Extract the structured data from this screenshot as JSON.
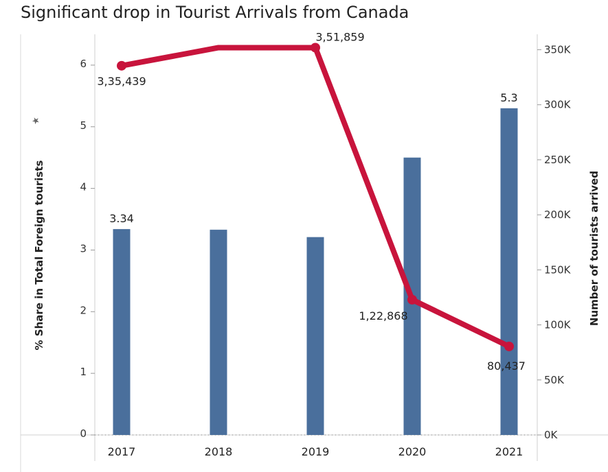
{
  "chart_data": {
    "type": "bar+line",
    "title": "Significant drop in Tourist Arrivals from Canada",
    "categories": [
      "2017",
      "2018",
      "2019",
      "2020",
      "2021"
    ],
    "series": [
      {
        "name": "% Share in Total Foreign tourists",
        "type": "bar",
        "axis": "left",
        "color": "#4a6f9c",
        "values": [
          3.34,
          3.33,
          3.21,
          4.5,
          5.3
        ],
        "labels": [
          "3.34",
          "",
          "",
          "",
          "5.3"
        ]
      },
      {
        "name": "Number of tourists arrived",
        "type": "line",
        "axis": "right",
        "color": "#c8143c",
        "values": [
          335439,
          351859,
          351859,
          122868,
          80437
        ],
        "labels": [
          "3,35,439",
          "",
          "3,51,859",
          "1,22,868",
          "80,437"
        ],
        "markers": [
          true,
          false,
          true,
          true,
          true
        ]
      }
    ],
    "ylabel_left": "% Share in Total Foreign tourists",
    "ylabel_right": "Number of tourists arrived",
    "ylim_left": [
      0,
      6.5
    ],
    "ylim_right": [
      0,
      364000
    ],
    "yticks_left": [
      0,
      1,
      2,
      3,
      4,
      5,
      6
    ],
    "yticks_right": [
      0,
      50000,
      100000,
      150000,
      200000,
      250000,
      300000,
      350000
    ],
    "yticklabels_right": [
      "0K",
      "50K",
      "100K",
      "150K",
      "200K",
      "250K",
      "300K",
      "350K"
    ],
    "legend": "none",
    "grid": false
  }
}
